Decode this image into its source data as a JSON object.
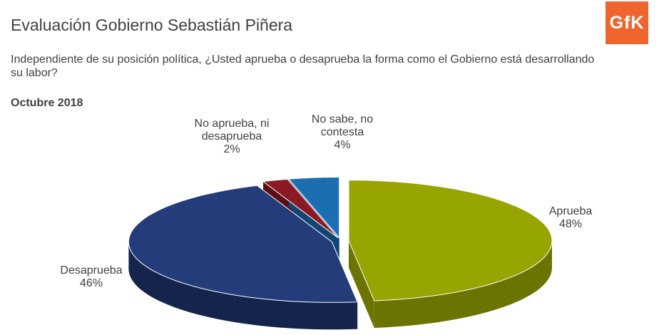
{
  "header": {
    "title": "Evaluación Gobierno Sebastián Piñera",
    "question": "Independiente de su posición política, ¿Usted aprueba o desaprueba la forma como el Gobierno está desarrollando su labor?",
    "period": "Octubre 2018",
    "logo_text": "GfK",
    "logo_color": "#f0642d"
  },
  "chart_data": {
    "type": "pie",
    "style": "3d-exploded",
    "legend": "none",
    "slices": [
      {
        "label_lines": [
          "Aprueba"
        ],
        "value": 48,
        "value_label": "48%",
        "color": "#98a500",
        "side_color": "#6b7400"
      },
      {
        "label_lines": [
          "Desaprueba"
        ],
        "value": 46,
        "value_label": "46%",
        "color": "#243c7a",
        "side_color": "#15244d"
      },
      {
        "label_lines": [
          "No aprueba, ni",
          "desaprueba"
        ],
        "value": 2,
        "value_label": "2%",
        "color": "#8b1a24",
        "side_color": "#5a0f16"
      },
      {
        "label_lines": [
          "No sabe, no",
          "contesta"
        ],
        "value": 4,
        "value_label": "4%",
        "color": "#1b6fb0",
        "side_color": "#0f4673"
      }
    ]
  }
}
